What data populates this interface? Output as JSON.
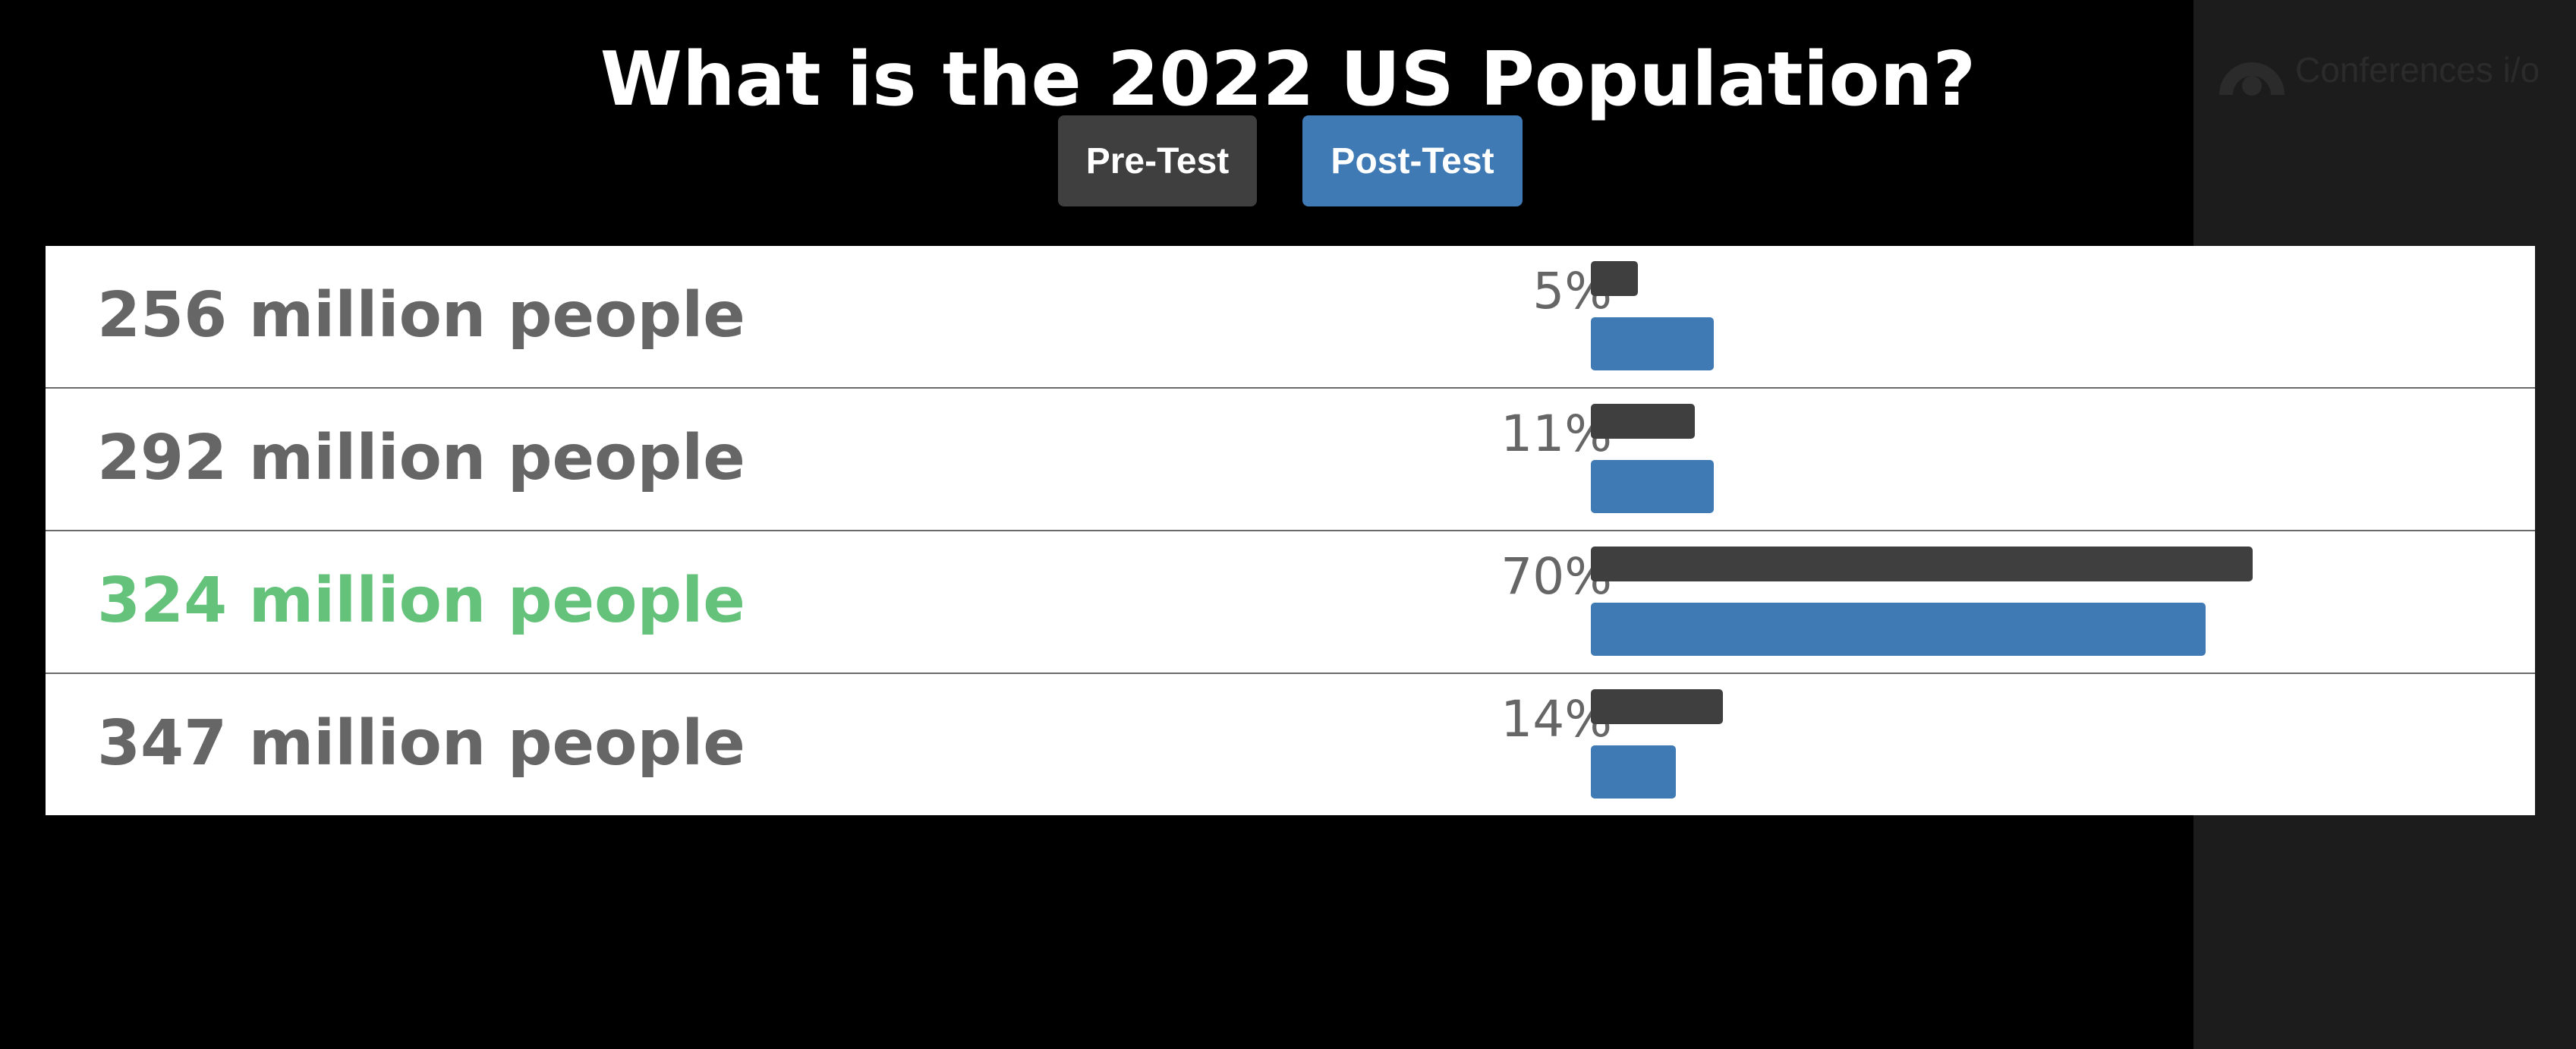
{
  "header": {
    "title": "What is the 2022 US Population?"
  },
  "brand": {
    "name": "Conferences i/o",
    "icon": "conferences-io-logo"
  },
  "toggles": {
    "pre_label": "Pre-Test",
    "post_label": "Post-Test",
    "active": "Post-Test"
  },
  "colors": {
    "background": "#000000",
    "side_panel": "#1c1c1c",
    "pre_test": "#3f3f3f",
    "post_test": "#3f7ab5",
    "correct_answer": "#64c27b",
    "answer_text": "#666666"
  },
  "chart_data": {
    "type": "bar",
    "orientation": "horizontal",
    "categories": [
      "256 million people",
      "292 million people",
      "324 million people",
      "347 million people"
    ],
    "correct_answer": "324 million people",
    "series": [
      {
        "name": "Pre-Test",
        "values": [
          5,
          11,
          70,
          14
        ]
      },
      {
        "name": "Post-Test",
        "values": [
          13,
          13,
          65,
          9
        ]
      }
    ],
    "labels": [
      "5%",
      "11%",
      "70%",
      "14%"
    ],
    "xlim": [
      0,
      100
    ]
  }
}
